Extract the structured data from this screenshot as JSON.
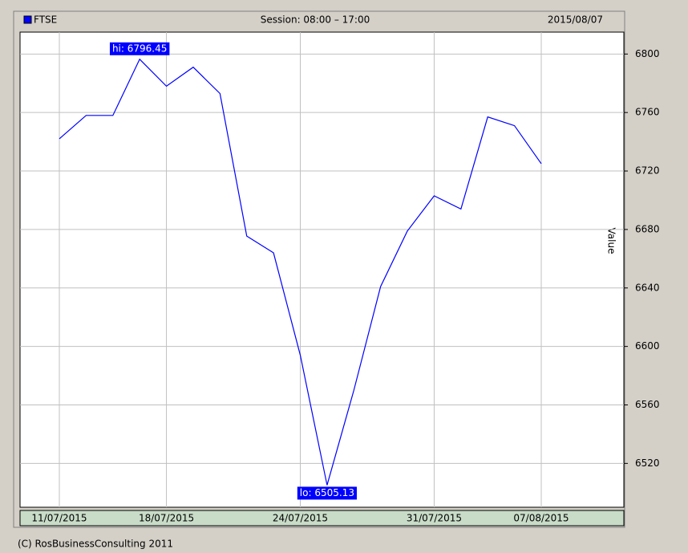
{
  "chart_data": {
    "type": "line",
    "legend": "FTSE",
    "session": "Session: 08:00 – 17:00",
    "date": "2015/08/07",
    "ylabel": "Value",
    "footer": "(C) RosBusinessConsulting 2011",
    "categories": [
      "11/07/2015",
      null,
      null,
      null,
      "18/07/2015",
      null,
      null,
      null,
      null,
      "24/07/2015",
      null,
      null,
      null,
      null,
      "31/07/2015",
      null,
      null,
      null,
      "07/08/2015"
    ],
    "series": [
      {
        "name": "FTSE",
        "color": "#0000ff",
        "values": [
          6742,
          6758,
          6758,
          6796.45,
          6778,
          6791,
          6773,
          6675.5,
          6664,
          6594,
          6505.13,
          6570,
          6641,
          6679,
          6703,
          6694,
          6757,
          6751,
          6725
        ]
      }
    ],
    "annotations": [
      {
        "text": "hi: 6796.45",
        "index": 3,
        "side": "above"
      },
      {
        "text": "lo: 6505.13",
        "index": 10,
        "side": "below"
      }
    ],
    "ylim": [
      6490,
      6815
    ],
    "yticks": [
      6520,
      6560,
      6600,
      6640,
      6680,
      6720,
      6760,
      6800
    ],
    "grid": true
  }
}
